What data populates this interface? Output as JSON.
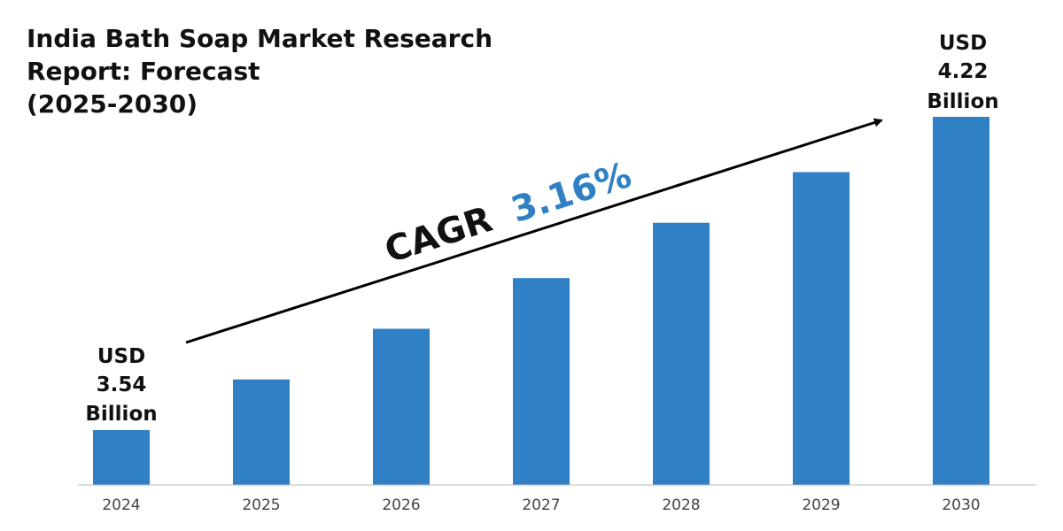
{
  "title_lines": [
    "India Bath Soap Market Research",
    "Report: Forecast",
    "(2025-2030)"
  ],
  "cagr": {
    "label": "CAGR",
    "value": "3.16%"
  },
  "colors": {
    "bar": "#2f80c4",
    "cagr_value": "#2f80c4",
    "text": "#111111",
    "arrow": "#000000",
    "axis": "#bbbbbb"
  },
  "start_label": [
    "USD",
    "3.54",
    "Billion"
  ],
  "end_label": [
    "USD",
    "4.22",
    "Billion"
  ],
  "chart_data": {
    "type": "bar",
    "title": "India Bath Soap Market Research Report: Forecast (2025-2030)",
    "categories": [
      "2024",
      "2025",
      "2026",
      "2027",
      "2028",
      "2029",
      "2030"
    ],
    "values": [
      3.54,
      3.65,
      3.76,
      3.87,
      3.99,
      4.1,
      4.22
    ],
    "unit": "USD Billion",
    "grid": false,
    "legend": "none"
  }
}
